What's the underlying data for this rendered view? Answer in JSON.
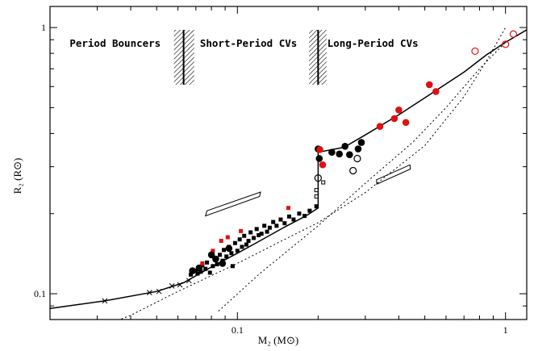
{
  "chart_data": {
    "type": "scatter",
    "x_scale": "log",
    "y_scale": "log",
    "xlim": [
      0.02,
      1.2
    ],
    "ylim": [
      0.08,
      1.2
    ],
    "xlabel": "M₂ (M⊙)",
    "ylabel": "R₂ (R⊙)",
    "x_ticks": [
      {
        "v": 0.1,
        "label": "0.1"
      },
      {
        "v": 1,
        "label": "1"
      }
    ],
    "y_ticks": [
      {
        "v": 0.1,
        "label": "0.1"
      },
      {
        "v": 1,
        "label": "1"
      }
    ],
    "grid": false,
    "legend": "none",
    "colors": {
      "black": "#000000",
      "red": "#e01010"
    },
    "regions": [
      {
        "label": "Period Bouncers",
        "x_center": 0.035,
        "y": 0.87
      },
      {
        "label": "Short-Period CVs",
        "x_center": 0.11,
        "y": 0.87
      },
      {
        "label": "Long-Period CVs",
        "x_center": 0.32,
        "y": 0.87
      }
    ],
    "period_gap_lines": [
      {
        "x": 0.063,
        "band": [
          0.058,
          0.069
        ]
      },
      {
        "x": 0.2,
        "band": [
          0.185,
          0.215
        ]
      }
    ],
    "donor_sequence": [
      [
        0.02,
        0.088
      ],
      [
        0.032,
        0.094
      ],
      [
        0.05,
        0.102
      ],
      [
        0.063,
        0.11
      ],
      [
        0.08,
        0.126
      ],
      [
        0.1,
        0.142
      ],
      [
        0.12,
        0.157
      ],
      [
        0.15,
        0.178
      ],
      [
        0.18,
        0.196
      ],
      [
        0.2,
        0.21
      ],
      [
        0.2,
        0.34
      ],
      [
        0.25,
        0.355
      ],
      [
        0.3,
        0.395
      ],
      [
        0.4,
        0.47
      ],
      [
        0.55,
        0.58
      ],
      [
        0.7,
        0.68
      ],
      [
        0.85,
        0.79
      ],
      [
        1.0,
        0.88
      ],
      [
        1.2,
        0.98
      ]
    ],
    "dotted_sequence": [
      [
        0.02,
        0.063
      ],
      [
        0.04,
        0.083
      ],
      [
        0.06,
        0.102
      ],
      [
        0.1,
        0.13
      ],
      [
        0.15,
        0.16
      ],
      [
        0.2,
        0.185
      ],
      [
        0.3,
        0.24
      ],
      [
        0.5,
        0.36
      ],
      [
        0.7,
        0.55
      ],
      [
        0.85,
        0.75
      ],
      [
        1.0,
        1.0
      ]
    ],
    "dotted_sequence_2": [
      [
        0.085,
        0.086
      ],
      [
        0.12,
        0.118
      ],
      [
        0.2,
        0.18
      ],
      [
        0.3,
        0.26
      ],
      [
        0.45,
        0.37
      ],
      [
        0.6,
        0.5
      ],
      [
        0.8,
        0.7
      ],
      [
        1.0,
        0.88
      ]
    ],
    "error_boxes": [
      {
        "corners": [
          [
            0.077,
            0.205
          ],
          [
            0.122,
            0.241
          ],
          [
            0.121,
            0.232
          ],
          [
            0.076,
            0.196
          ]
        ]
      },
      {
        "corners": [
          [
            0.33,
            0.268
          ],
          [
            0.44,
            0.305
          ],
          [
            0.442,
            0.294
          ],
          [
            0.331,
            0.258
          ]
        ]
      }
    ],
    "series": [
      {
        "marker": "cross",
        "color": "#000000",
        "points": [
          [
            0.032,
            0.094
          ],
          [
            0.047,
            0.101
          ],
          [
            0.051,
            0.102
          ],
          [
            0.057,
            0.107
          ],
          [
            0.061,
            0.108
          ],
          [
            0.066,
            0.112
          ]
        ]
      },
      {
        "marker": "square-filled",
        "color": "#000000",
        "points": [
          [
            0.067,
            0.118
          ],
          [
            0.07,
            0.122
          ],
          [
            0.071,
            0.119
          ],
          [
            0.073,
            0.121
          ],
          [
            0.074,
            0.128
          ],
          [
            0.076,
            0.124
          ],
          [
            0.077,
            0.131
          ],
          [
            0.079,
            0.12
          ],
          [
            0.081,
            0.127
          ],
          [
            0.083,
            0.135
          ],
          [
            0.084,
            0.129
          ],
          [
            0.086,
            0.14
          ],
          [
            0.088,
            0.133
          ],
          [
            0.089,
            0.146
          ],
          [
            0.091,
            0.138
          ],
          [
            0.093,
            0.15
          ],
          [
            0.095,
            0.142
          ],
          [
            0.096,
            0.127
          ],
          [
            0.098,
            0.155
          ],
          [
            0.1,
            0.145
          ],
          [
            0.102,
            0.16
          ],
          [
            0.104,
            0.15
          ],
          [
            0.106,
            0.165
          ],
          [
            0.108,
            0.153
          ],
          [
            0.11,
            0.158
          ],
          [
            0.112,
            0.17
          ],
          [
            0.115,
            0.162
          ],
          [
            0.118,
            0.175
          ],
          [
            0.12,
            0.166
          ],
          [
            0.123,
            0.168
          ],
          [
            0.126,
            0.18
          ],
          [
            0.129,
            0.171
          ],
          [
            0.132,
            0.177
          ],
          [
            0.136,
            0.186
          ],
          [
            0.14,
            0.18
          ],
          [
            0.145,
            0.19
          ],
          [
            0.15,
            0.184
          ],
          [
            0.156,
            0.195
          ],
          [
            0.162,
            0.19
          ],
          [
            0.17,
            0.2
          ],
          [
            0.178,
            0.196
          ],
          [
            0.186,
            0.205
          ],
          [
            0.197,
            0.213
          ]
        ]
      },
      {
        "marker": "square-filled",
        "color": "#e01010",
        "points": [
          [
            0.074,
            0.13
          ],
          [
            0.081,
            0.145
          ],
          [
            0.087,
            0.158
          ],
          [
            0.092,
            0.163
          ],
          [
            0.103,
            0.172
          ],
          [
            0.155,
            0.21
          ]
        ]
      },
      {
        "marker": "square-open",
        "color": "#000000",
        "points": [
          [
            0.197,
            0.232
          ],
          [
            0.197,
            0.245
          ],
          [
            0.209,
            0.262
          ]
        ]
      },
      {
        "marker": "circle-filled",
        "color": "#000000",
        "points": [
          [
            0.068,
            0.122
          ],
          [
            0.072,
            0.125
          ],
          [
            0.08,
            0.14
          ],
          [
            0.083,
            0.135
          ],
          [
            0.088,
            0.13
          ],
          [
            0.093,
            0.148
          ],
          [
            0.2,
            0.35
          ],
          [
            0.202,
            0.322
          ],
          [
            0.225,
            0.34
          ],
          [
            0.24,
            0.335
          ],
          [
            0.252,
            0.358
          ],
          [
            0.262,
            0.333
          ],
          [
            0.282,
            0.35
          ],
          [
            0.29,
            0.37
          ]
        ]
      },
      {
        "marker": "circle-filled",
        "color": "#e01010",
        "points": [
          [
            0.203,
            0.348
          ],
          [
            0.208,
            0.305
          ],
          [
            0.34,
            0.425
          ],
          [
            0.385,
            0.455
          ],
          [
            0.4,
            0.49
          ],
          [
            0.425,
            0.44
          ],
          [
            0.52,
            0.61
          ],
          [
            0.55,
            0.575
          ]
        ]
      },
      {
        "marker": "circle-open",
        "color": "#000000",
        "points": [
          [
            0.2,
            0.272
          ],
          [
            0.27,
            0.29
          ],
          [
            0.28,
            0.322
          ]
        ]
      },
      {
        "marker": "circle-open",
        "color": "#e01010",
        "points": [
          [
            0.77,
            0.815
          ],
          [
            1.0,
            0.865
          ],
          [
            1.07,
            0.945
          ]
        ]
      }
    ]
  }
}
